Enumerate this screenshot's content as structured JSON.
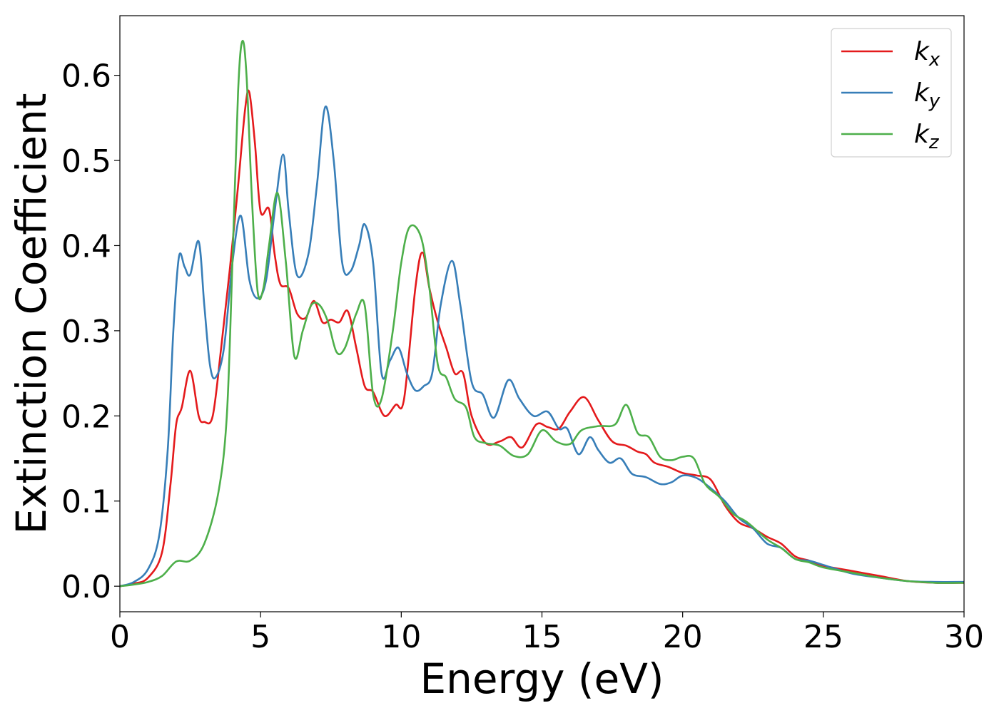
{
  "chart_data": {
    "type": "line",
    "xlabel": "Energy (eV)",
    "ylabel": "Extinction Coefficient",
    "xlim": [
      0,
      30
    ],
    "ylim": [
      -0.03,
      0.67
    ],
    "xticks": [
      0,
      5,
      10,
      15,
      20,
      25,
      30
    ],
    "xtick_labels": [
      "0",
      "5",
      "10",
      "15",
      "20",
      "25",
      "30"
    ],
    "yticks": [
      0.0,
      0.1,
      0.2,
      0.3,
      0.4,
      0.5,
      0.6
    ],
    "ytick_labels": [
      "0.0",
      "0.1",
      "0.2",
      "0.3",
      "0.4",
      "0.5",
      "0.6"
    ],
    "grid": false,
    "legend_position": "top-right",
    "series": [
      {
        "name": "k_x",
        "label_main": "k",
        "label_sub": "x",
        "color": "#e41a1c",
        "points": [
          [
            0,
            0.0
          ],
          [
            0.5,
            0.003
          ],
          [
            1.0,
            0.01
          ],
          [
            1.5,
            0.04
          ],
          [
            1.8,
            0.12
          ],
          [
            2.0,
            0.19
          ],
          [
            2.2,
            0.21
          ],
          [
            2.5,
            0.253
          ],
          [
            2.8,
            0.2
          ],
          [
            3.0,
            0.193
          ],
          [
            3.3,
            0.2
          ],
          [
            3.6,
            0.28
          ],
          [
            3.9,
            0.37
          ],
          [
            4.2,
            0.47
          ],
          [
            4.45,
            0.56
          ],
          [
            4.6,
            0.58
          ],
          [
            4.8,
            0.52
          ],
          [
            5.0,
            0.44
          ],
          [
            5.3,
            0.443
          ],
          [
            5.5,
            0.39
          ],
          [
            5.7,
            0.355
          ],
          [
            6.0,
            0.35
          ],
          [
            6.3,
            0.32
          ],
          [
            6.6,
            0.315
          ],
          [
            6.9,
            0.335
          ],
          [
            7.2,
            0.31
          ],
          [
            7.5,
            0.313
          ],
          [
            7.8,
            0.31
          ],
          [
            8.1,
            0.323
          ],
          [
            8.4,
            0.28
          ],
          [
            8.7,
            0.235
          ],
          [
            9.0,
            0.228
          ],
          [
            9.4,
            0.2
          ],
          [
            9.8,
            0.213
          ],
          [
            10.1,
            0.22
          ],
          [
            10.5,
            0.35
          ],
          [
            10.75,
            0.392
          ],
          [
            11.0,
            0.35
          ],
          [
            11.3,
            0.31
          ],
          [
            11.6,
            0.28
          ],
          [
            11.9,
            0.25
          ],
          [
            12.2,
            0.25
          ],
          [
            12.5,
            0.2
          ],
          [
            13.0,
            0.168
          ],
          [
            13.5,
            0.17
          ],
          [
            13.9,
            0.175
          ],
          [
            14.3,
            0.163
          ],
          [
            14.8,
            0.19
          ],
          [
            15.2,
            0.187
          ],
          [
            15.6,
            0.185
          ],
          [
            16.0,
            0.205
          ],
          [
            16.5,
            0.222
          ],
          [
            17.0,
            0.195
          ],
          [
            17.5,
            0.17
          ],
          [
            18.0,
            0.165
          ],
          [
            18.4,
            0.158
          ],
          [
            18.7,
            0.155
          ],
          [
            19.0,
            0.145
          ],
          [
            19.5,
            0.14
          ],
          [
            20.0,
            0.133
          ],
          [
            20.5,
            0.13
          ],
          [
            21.0,
            0.125
          ],
          [
            21.5,
            0.095
          ],
          [
            22.0,
            0.075
          ],
          [
            22.5,
            0.068
          ],
          [
            23.0,
            0.058
          ],
          [
            23.5,
            0.05
          ],
          [
            24.0,
            0.035
          ],
          [
            24.5,
            0.03
          ],
          [
            25.0,
            0.024
          ],
          [
            26.0,
            0.018
          ],
          [
            27.0,
            0.012
          ],
          [
            28.0,
            0.006
          ],
          [
            29.0,
            0.004
          ],
          [
            30.0,
            0.004
          ]
        ]
      },
      {
        "name": "k_y",
        "label_main": "k",
        "label_sub": "y",
        "color": "#377eb8",
        "points": [
          [
            0,
            0.0
          ],
          [
            0.5,
            0.005
          ],
          [
            1.0,
            0.02
          ],
          [
            1.4,
            0.06
          ],
          [
            1.7,
            0.16
          ],
          [
            1.9,
            0.3
          ],
          [
            2.1,
            0.387
          ],
          [
            2.3,
            0.375
          ],
          [
            2.5,
            0.366
          ],
          [
            2.8,
            0.405
          ],
          [
            3.0,
            0.33
          ],
          [
            3.2,
            0.26
          ],
          [
            3.4,
            0.245
          ],
          [
            3.7,
            0.28
          ],
          [
            4.0,
            0.38
          ],
          [
            4.3,
            0.435
          ],
          [
            4.6,
            0.36
          ],
          [
            4.9,
            0.338
          ],
          [
            5.2,
            0.36
          ],
          [
            5.5,
            0.44
          ],
          [
            5.8,
            0.507
          ],
          [
            6.0,
            0.44
          ],
          [
            6.3,
            0.365
          ],
          [
            6.7,
            0.39
          ],
          [
            7.0,
            0.47
          ],
          [
            7.3,
            0.563
          ],
          [
            7.6,
            0.5
          ],
          [
            7.9,
            0.38
          ],
          [
            8.2,
            0.37
          ],
          [
            8.5,
            0.4
          ],
          [
            8.7,
            0.425
          ],
          [
            9.0,
            0.38
          ],
          [
            9.3,
            0.25
          ],
          [
            9.6,
            0.265
          ],
          [
            9.9,
            0.28
          ],
          [
            10.2,
            0.25
          ],
          [
            10.5,
            0.23
          ],
          [
            10.8,
            0.235
          ],
          [
            11.1,
            0.25
          ],
          [
            11.4,
            0.33
          ],
          [
            11.8,
            0.382
          ],
          [
            12.1,
            0.33
          ],
          [
            12.5,
            0.24
          ],
          [
            12.9,
            0.225
          ],
          [
            13.3,
            0.198
          ],
          [
            13.8,
            0.242
          ],
          [
            14.2,
            0.22
          ],
          [
            14.7,
            0.2
          ],
          [
            15.2,
            0.205
          ],
          [
            15.6,
            0.185
          ],
          [
            15.9,
            0.185
          ],
          [
            16.3,
            0.155
          ],
          [
            16.7,
            0.175
          ],
          [
            17.0,
            0.16
          ],
          [
            17.4,
            0.145
          ],
          [
            17.8,
            0.15
          ],
          [
            18.2,
            0.132
          ],
          [
            18.7,
            0.128
          ],
          [
            19.2,
            0.12
          ],
          [
            19.6,
            0.122
          ],
          [
            20.0,
            0.13
          ],
          [
            20.5,
            0.127
          ],
          [
            21.0,
            0.115
          ],
          [
            21.5,
            0.1
          ],
          [
            22.0,
            0.08
          ],
          [
            22.5,
            0.068
          ],
          [
            23.0,
            0.05
          ],
          [
            23.5,
            0.045
          ],
          [
            24.0,
            0.032
          ],
          [
            24.5,
            0.03
          ],
          [
            25.0,
            0.025
          ],
          [
            26.0,
            0.015
          ],
          [
            27.0,
            0.01
          ],
          [
            28.0,
            0.006
          ],
          [
            29.0,
            0.005
          ],
          [
            30.0,
            0.005
          ]
        ]
      },
      {
        "name": "k_z",
        "label_main": "k",
        "label_sub": "z",
        "color": "#4daf4a",
        "points": [
          [
            0,
            0.0
          ],
          [
            0.5,
            0.002
          ],
          [
            1.0,
            0.005
          ],
          [
            1.5,
            0.012
          ],
          [
            2.0,
            0.029
          ],
          [
            2.5,
            0.03
          ],
          [
            3.0,
            0.05
          ],
          [
            3.5,
            0.11
          ],
          [
            3.8,
            0.2
          ],
          [
            4.0,
            0.38
          ],
          [
            4.2,
            0.58
          ],
          [
            4.35,
            0.64
          ],
          [
            4.5,
            0.6
          ],
          [
            4.7,
            0.45
          ],
          [
            4.9,
            0.345
          ],
          [
            5.1,
            0.35
          ],
          [
            5.3,
            0.4
          ],
          [
            5.6,
            0.462
          ],
          [
            5.9,
            0.38
          ],
          [
            6.2,
            0.27
          ],
          [
            6.5,
            0.3
          ],
          [
            6.8,
            0.33
          ],
          [
            7.1,
            0.33
          ],
          [
            7.4,
            0.31
          ],
          [
            7.7,
            0.275
          ],
          [
            8.0,
            0.28
          ],
          [
            8.4,
            0.32
          ],
          [
            8.7,
            0.33
          ],
          [
            9.0,
            0.225
          ],
          [
            9.3,
            0.22
          ],
          [
            9.7,
            0.3
          ],
          [
            10.0,
            0.38
          ],
          [
            10.3,
            0.422
          ],
          [
            10.7,
            0.41
          ],
          [
            11.0,
            0.35
          ],
          [
            11.3,
            0.26
          ],
          [
            11.6,
            0.245
          ],
          [
            11.9,
            0.22
          ],
          [
            12.3,
            0.21
          ],
          [
            12.6,
            0.175
          ],
          [
            13.0,
            0.168
          ],
          [
            13.5,
            0.165
          ],
          [
            14.0,
            0.153
          ],
          [
            14.5,
            0.155
          ],
          [
            15.0,
            0.183
          ],
          [
            15.5,
            0.17
          ],
          [
            16.0,
            0.167
          ],
          [
            16.4,
            0.183
          ],
          [
            17.0,
            0.188
          ],
          [
            17.6,
            0.19
          ],
          [
            18.0,
            0.213
          ],
          [
            18.4,
            0.18
          ],
          [
            18.8,
            0.175
          ],
          [
            19.2,
            0.152
          ],
          [
            19.6,
            0.148
          ],
          [
            20.0,
            0.152
          ],
          [
            20.4,
            0.15
          ],
          [
            20.8,
            0.12
          ],
          [
            21.3,
            0.105
          ],
          [
            21.8,
            0.085
          ],
          [
            22.3,
            0.075
          ],
          [
            23.0,
            0.055
          ],
          [
            23.5,
            0.045
          ],
          [
            24.0,
            0.032
          ],
          [
            24.5,
            0.028
          ],
          [
            25.0,
            0.022
          ],
          [
            26.0,
            0.016
          ],
          [
            27.0,
            0.01
          ],
          [
            28.0,
            0.006
          ],
          [
            29.0,
            0.004
          ],
          [
            30.0,
            0.004
          ]
        ]
      }
    ]
  }
}
